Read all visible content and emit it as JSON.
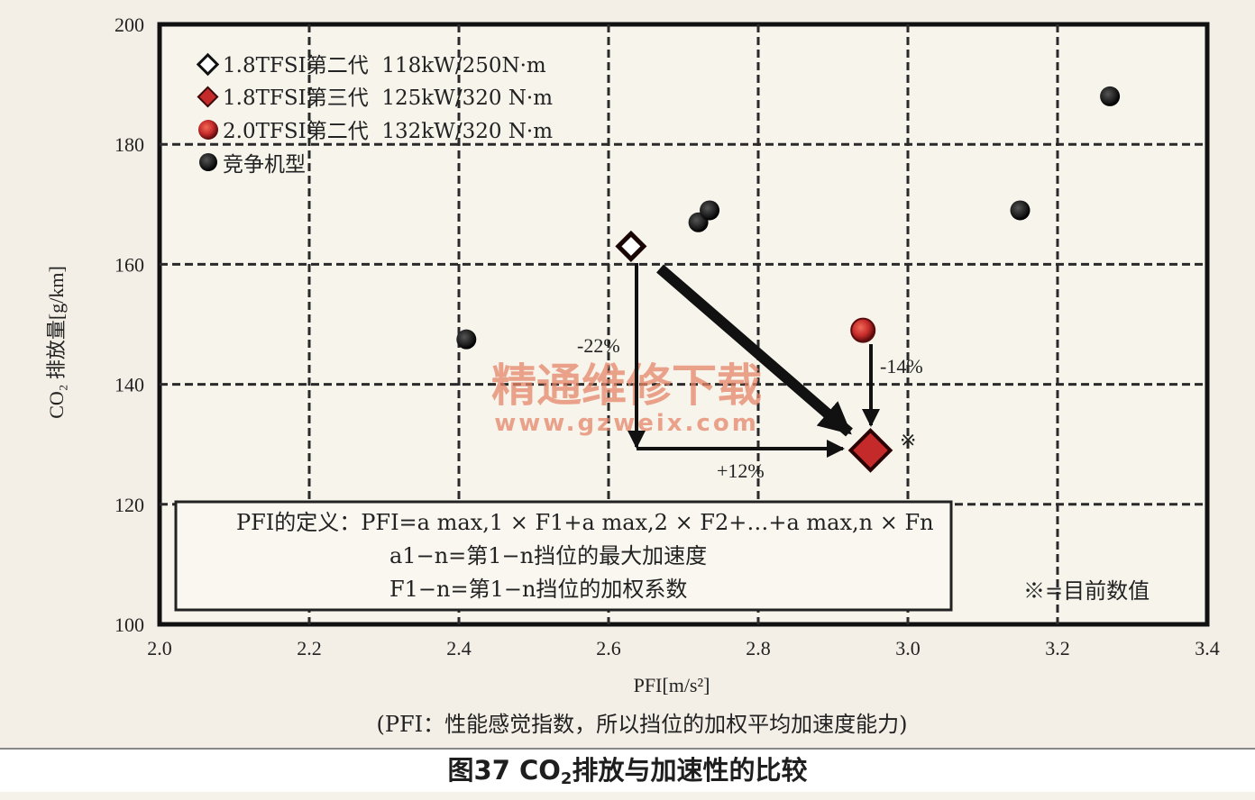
{
  "chart_data": {
    "type": "scatter",
    "xlabel": "PFI[m/s²]",
    "ylabel": "CO₂ 排放量[g/km]",
    "xlim": [
      2.0,
      3.4
    ],
    "ylim": [
      100,
      200
    ],
    "xticks": [
      "2.0",
      "2.2",
      "2.4",
      "2.6",
      "2.8",
      "3.0",
      "3.2",
      "3.4"
    ],
    "yticks": [
      "100",
      "120",
      "140",
      "160",
      "180",
      "200"
    ],
    "grid": true,
    "legend_position": "top-left",
    "series": [
      {
        "name": "1.8TFSI第二代  118kW/250N·m",
        "marker": "diamond-hollow",
        "color": "#b02020",
        "points": [
          {
            "x": 2.63,
            "y": 163
          }
        ]
      },
      {
        "name": "1.8TFSI第三代  125kW/320 N·m",
        "marker": "diamond-filled",
        "color": "#c42a2a",
        "points": [
          {
            "x": 2.95,
            "y": 129
          }
        ]
      },
      {
        "name": "2.0TFSI第二代  132kW/320 N·m",
        "marker": "circle-red",
        "color": "#c42a2a",
        "points": [
          {
            "x": 2.94,
            "y": 149
          }
        ]
      },
      {
        "name": "竞争机型",
        "marker": "circle-black",
        "color": "#1c1c1c",
        "points": [
          {
            "x": 2.41,
            "y": 147.5
          },
          {
            "x": 2.72,
            "y": 167
          },
          {
            "x": 2.735,
            "y": 169
          },
          {
            "x": 3.15,
            "y": 169
          },
          {
            "x": 3.27,
            "y": 188
          }
        ]
      }
    ],
    "annotations": [
      {
        "text": "-22%"
      },
      {
        "text": "+12%"
      },
      {
        "text": "-14%"
      },
      {
        "text": "※"
      }
    ],
    "definition_box": {
      "line1": "PFI的定义：PFI=a max,1 × F1+a max,2 × F2+…+a max,n × Fn",
      "line2": "a1−n=第1−n挡位的最大加速度",
      "line3": "F1−n=第1−n挡位的加权系数"
    },
    "note": "※=目前数值"
  },
  "subtitle": "(PFI：性能感觉指数，所以挡位的加权平均加速度能力)",
  "caption_prefix": "图37 CO",
  "caption_sub": "2",
  "caption_suffix": "排放与加速性的比较",
  "watermark": {
    "line1": "精通维修下载",
    "line2": "www.gzweix.com"
  },
  "colors": {
    "accent_red": "#c42a2a",
    "marker_black": "#1c1c1c",
    "watermark": "#e6866a"
  }
}
